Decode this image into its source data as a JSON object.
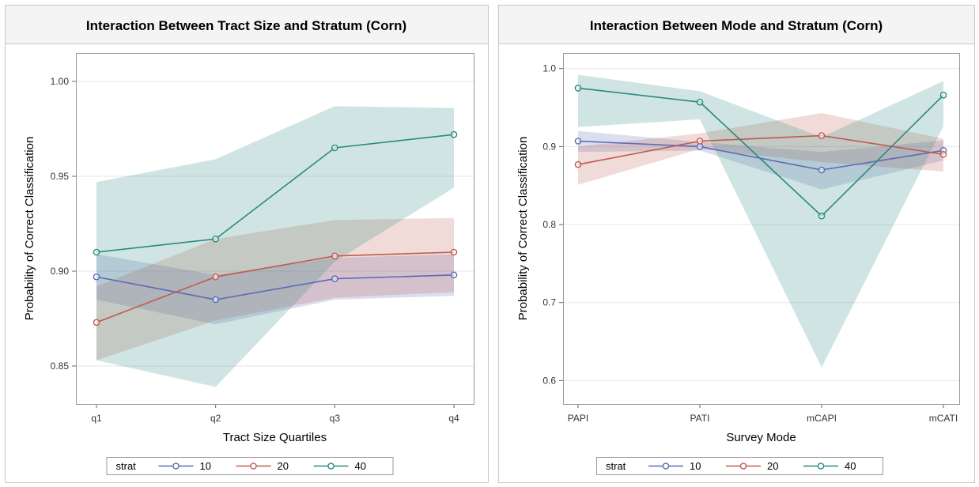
{
  "chart_data": [
    {
      "type": "line",
      "title": "Interaction Between Tract Size and Stratum (Corn)",
      "xlabel": "Tract Size Quartiles",
      "ylabel": "Probability of Correct Classification",
      "categories": [
        "q1",
        "q2",
        "q3",
        "q4"
      ],
      "ylim": [
        0.83,
        1.015
      ],
      "yticks": [
        "0.85",
        "0.90",
        "0.95",
        "1.00"
      ],
      "grid": true,
      "legend": {
        "title": "strat",
        "placement": "bottom"
      },
      "series": [
        {
          "name": "10",
          "color": "#5b6bb5",
          "values": [
            0.897,
            0.885,
            0.896,
            0.898
          ],
          "lower": [
            0.885,
            0.872,
            0.885,
            0.887
          ],
          "upper": [
            0.909,
            0.898,
            0.907,
            0.909
          ]
        },
        {
          "name": "20",
          "color": "#bf5b4e",
          "values": [
            0.873,
            0.897,
            0.908,
            0.91
          ],
          "lower": [
            0.853,
            0.874,
            0.886,
            0.889
          ],
          "upper": [
            0.892,
            0.917,
            0.927,
            0.928
          ]
        },
        {
          "name": "40",
          "color": "#2a8a7e",
          "values": [
            0.91,
            0.917,
            0.965,
            0.972
          ],
          "lower": [
            0.853,
            0.839,
            0.905,
            0.944
          ],
          "upper": [
            0.947,
            0.959,
            0.987,
            0.986
          ]
        }
      ]
    },
    {
      "type": "line",
      "title": "Interaction Between Mode and Stratum (Corn)",
      "xlabel": "Survey Mode",
      "ylabel": "Probability of Correct Classification",
      "categories": [
        "PAPI",
        "PATI",
        "mCAPI",
        "mCATI"
      ],
      "ylim": [
        0.57,
        1.02
      ],
      "yticks": [
        "0.6",
        "0.7",
        "0.8",
        "0.9",
        "1.0"
      ],
      "grid": true,
      "legend": {
        "title": "strat",
        "placement": "bottom"
      },
      "series": [
        {
          "name": "10",
          "color": "#5b6bb5",
          "values": [
            0.907,
            0.9,
            0.87,
            0.895
          ],
          "lower": [
            0.893,
            0.895,
            0.845,
            0.882
          ],
          "upper": [
            0.92,
            0.906,
            0.893,
            0.908
          ]
        },
        {
          "name": "20",
          "color": "#bf5b4e",
          "values": [
            0.877,
            0.907,
            0.914,
            0.89
          ],
          "lower": [
            0.851,
            0.897,
            0.88,
            0.868
          ],
          "upper": [
            0.9,
            0.917,
            0.943,
            0.91
          ]
        },
        {
          "name": "40",
          "color": "#2a8a7e",
          "values": [
            0.975,
            0.957,
            0.811,
            0.966
          ],
          "lower": [
            0.925,
            0.935,
            0.617,
            0.926
          ],
          "upper": [
            0.992,
            0.971,
            0.912,
            0.984
          ]
        }
      ]
    }
  ]
}
